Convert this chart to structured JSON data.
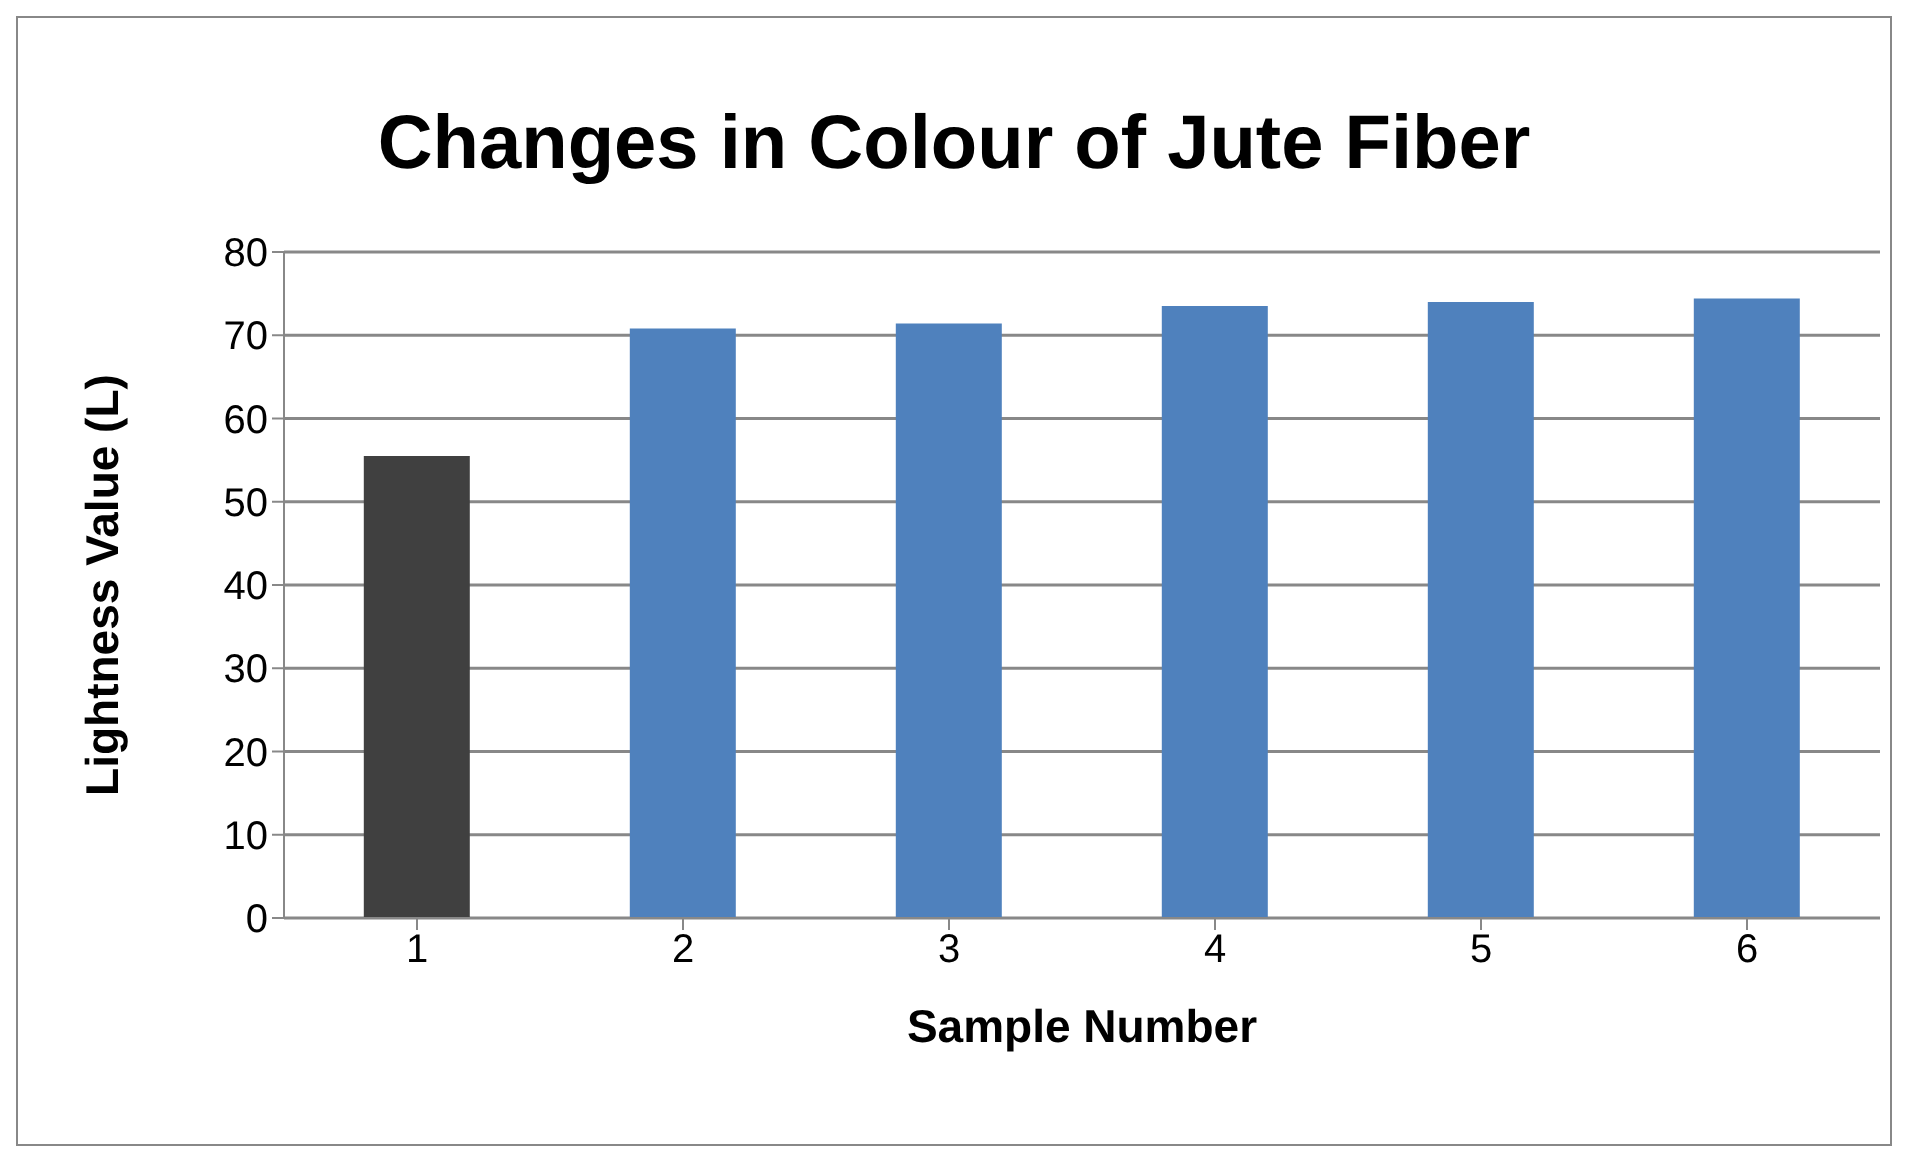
{
  "chart_data": {
    "type": "bar",
    "title": "Changes in Colour of Jute Fiber",
    "xlabel": "Sample Number",
    "ylabel": "Lightness Value (L)",
    "categories": [
      "1",
      "2",
      "3",
      "4",
      "5",
      "6"
    ],
    "values": [
      55.5,
      70.8,
      71.4,
      73.5,
      74.0,
      74.4
    ],
    "colors": [
      "#404040",
      "#4f81bd",
      "#4f81bd",
      "#4f81bd",
      "#4f81bd",
      "#4f81bd"
    ],
    "ylim": [
      0,
      80
    ],
    "yticks": [
      0,
      10,
      20,
      30,
      40,
      50,
      60,
      70,
      80
    ],
    "grid": "y"
  }
}
